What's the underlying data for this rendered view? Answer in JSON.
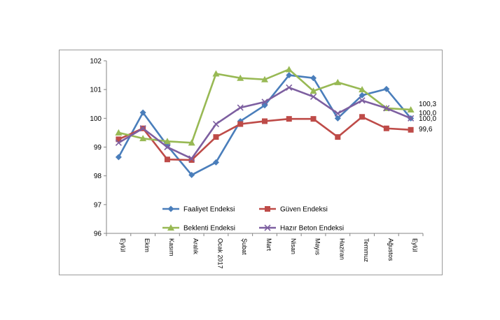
{
  "chart_data": {
    "type": "line",
    "categories": [
      "Eylül",
      "Ekim",
      "Kasım",
      "Aralık",
      "Ocak 2017",
      "Şubat",
      "Mart",
      "Nisan",
      "Mayıs",
      "Haziran",
      "Temmuz",
      "Ağustos",
      "Eylül"
    ],
    "ylim": [
      96,
      102
    ],
    "yticks": [
      "96",
      "97",
      "98",
      "99",
      "100",
      "101",
      "102"
    ],
    "grid": false,
    "legend_position": "bottom-center inside plot",
    "series": [
      {
        "name": "Faaliyet Endeksi",
        "color": "#4a7ebb",
        "marker": "diamond",
        "values": [
          98.65,
          100.2,
          99.05,
          98.03,
          98.47,
          99.9,
          100.45,
          101.5,
          101.4,
          100.0,
          100.8,
          101.02,
          100.0
        ]
      },
      {
        "name": "Güven Endeksi",
        "color": "#be4b48",
        "marker": "square",
        "values": [
          99.27,
          99.65,
          98.57,
          98.55,
          99.35,
          99.8,
          99.9,
          99.98,
          99.98,
          99.35,
          100.05,
          99.65,
          99.6
        ]
      },
      {
        "name": "Beklenti Endeksi",
        "color": "#98b954",
        "marker": "triangle",
        "values": [
          99.5,
          99.3,
          99.2,
          99.15,
          101.55,
          101.4,
          101.35,
          101.7,
          100.95,
          101.25,
          101.0,
          100.35,
          100.3
        ]
      },
      {
        "name": "Hazır Beton Endeksi",
        "color": "#7d5fa0",
        "marker": "x",
        "values": [
          99.15,
          99.65,
          99.0,
          98.6,
          99.8,
          100.37,
          100.57,
          101.07,
          100.75,
          100.17,
          100.62,
          100.35,
          100.0
        ]
      }
    ],
    "end_labels": [
      "100,3",
      "100,0",
      "100,0",
      "99,6"
    ]
  }
}
